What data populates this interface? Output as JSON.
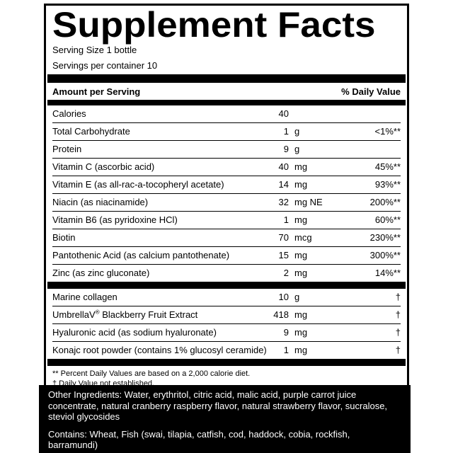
{
  "colors": {
    "text": "#000000",
    "background": "#ffffff",
    "panel_bg": "#000000",
    "panel_text": "#ffffff"
  },
  "label": {
    "title": "Supplement Facts",
    "serving_size": "Serving Size 1 bottle",
    "servings_per_container": "Servings per container 10",
    "columns": {
      "amount": "Amount per Serving",
      "daily_value": "% Daily Value"
    },
    "nutrients": [
      {
        "name": "Calories",
        "amount": "40",
        "unit": "",
        "dv": ""
      },
      {
        "name": "Total Carbohydrate",
        "amount": "1",
        "unit": "g",
        "dv": "<1%**"
      },
      {
        "name": "Protein",
        "amount": "9",
        "unit": "g",
        "dv": ""
      },
      {
        "name": "Vitamin C (ascorbic acid)",
        "amount": "40",
        "unit": "mg",
        "dv": "45%**"
      },
      {
        "name": "Vitamin E (as all-rac-a-tocopheryl acetate)",
        "amount": "14",
        "unit": "mg",
        "dv": "93%**"
      },
      {
        "name": "Niacin (as niacinamide)",
        "amount": "32",
        "unit": "mg NE",
        "dv": "200%**"
      },
      {
        "name": "Vitamin B6 (as pyridoxine HCl)",
        "amount": "1",
        "unit": "mg",
        "dv": "60%**"
      },
      {
        "name": "Biotin",
        "amount": "70",
        "unit": "mcg",
        "dv": "230%**"
      },
      {
        "name": "Pantothenic Acid (as calcium pantothenate)",
        "amount": "15",
        "unit": "mg",
        "dv": "300%**"
      },
      {
        "name": "Zinc (as zinc gluconate)",
        "amount": "2",
        "unit": "mg",
        "dv": "14%**"
      }
    ],
    "botanicals": [
      {
        "name": "Marine collagen",
        "amount": "10",
        "unit": "g",
        "dv": "†"
      },
      {
        "name": "UmbrellaV® Blackberry Fruit Extract",
        "amount": "418",
        "unit": "mg",
        "dv": "†"
      },
      {
        "name": "Hyaluronic acid (as sodium hyaluronate)",
        "amount": "9",
        "unit": "mg",
        "dv": "†"
      },
      {
        "name": "Konajc root powder (contains 1% glucosyl ceramide)",
        "amount": "1",
        "unit": "mg",
        "dv": "†"
      }
    ],
    "footnotes": [
      "** Percent Daily Values are based on a 2,000 calorie diet.",
      "† Daily Value not established."
    ]
  },
  "panel": {
    "other_ingredients": "Other Ingredients: Water, erythritol, citric acid, malic acid, purple carrot juice concentrate, natural cranberry raspberry flavor, natural strawberry flavor, sucralose, steviol glycosides",
    "contains": "Contains: Wheat, Fish (swai, tilapia, catfish, cod, haddock, cobia, rockfish, barramundi)"
  }
}
